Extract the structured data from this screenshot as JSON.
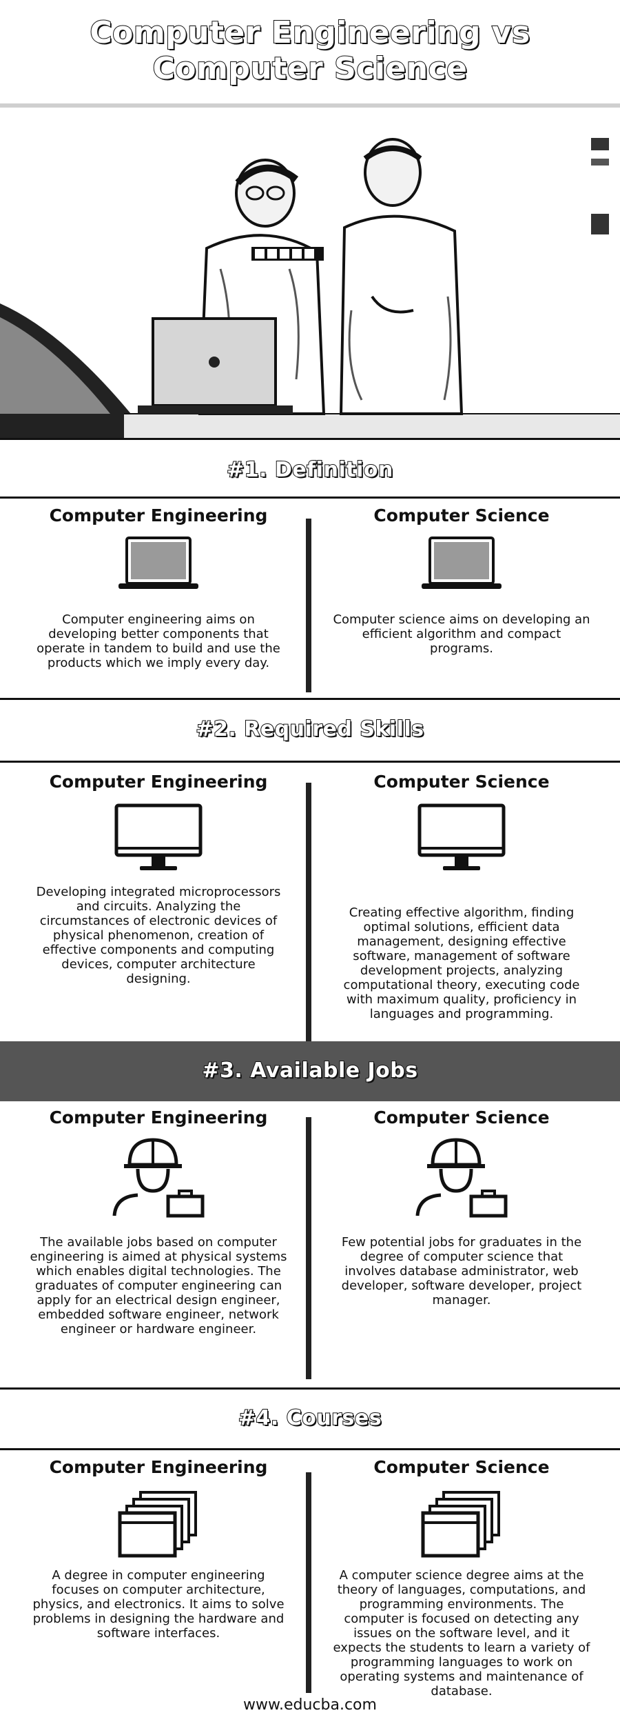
{
  "header": {
    "title": "Computer Engineering vs Computer Science"
  },
  "hero": {
    "alt": "two-people-with-laptop-photo"
  },
  "sections": [
    {
      "title": "#1. Definition",
      "left": {
        "heading": "Computer Engineering",
        "text": "Computer engineering aims on developing better components that operate in tandem to build and use the products which we imply every day.",
        "icon": "laptop-icon"
      },
      "right": {
        "heading": "Computer Science",
        "text": "Computer science aims on developing an efficient algorithm and compact programs.",
        "icon": "laptop-icon"
      }
    },
    {
      "title": "#2. Required Skills",
      "left": {
        "heading": "Computer Engineering",
        "text": "Developing integrated microprocessors and circuits. Analyzing the circumstances of electronic devices of physical phenomenon, creation of effective components and computing devices, computer architecture designing.",
        "icon": "monitor-icon"
      },
      "right": {
        "heading": "Computer Science",
        "text": "Creating effective algorithm, finding optimal solutions, efficient data management, designing effective software, management of software development projects, analyzing computational theory, executing code with maximum quality, proficiency in languages and programming.",
        "icon": "monitor-icon"
      }
    },
    {
      "title": "#3. Available Jobs",
      "left": {
        "heading": "Computer Engineering",
        "text": "The available jobs based on computer engineering is aimed at physical systems which enables digital technologies. The graduates of computer engineering can apply for an electrical design engineer, embedded software engineer, network engineer or hardware engineer.",
        "icon": "engineer-icon"
      },
      "right": {
        "heading": "Computer Science",
        "text": "Few potential jobs for graduates in the degree of computer science that involves database administrator, web developer, software developer, project manager.",
        "icon": "engineer-icon"
      }
    },
    {
      "title": "#4. Courses",
      "left": {
        "heading": "Computer Engineering",
        "text": "A degree in computer engineering focuses on computer architecture, physics, and electronics. It aims to solve problems in designing the hardware and software interfaces.",
        "icon": "windows-stack-icon"
      },
      "right": {
        "heading": "Computer Science",
        "text": "A computer science degree aims at the theory of languages, computations, and programming environments. The computer is focused on detecting any issues on the software level, and it expects the students to learn a variety of programming languages to work on operating systems and maintenance of database.",
        "icon": "windows-stack-icon"
      }
    }
  ],
  "footer": {
    "url": "www.educba.com"
  },
  "colors": {
    "band": "#555555",
    "ink": "#111111",
    "background": "#ffffff"
  }
}
